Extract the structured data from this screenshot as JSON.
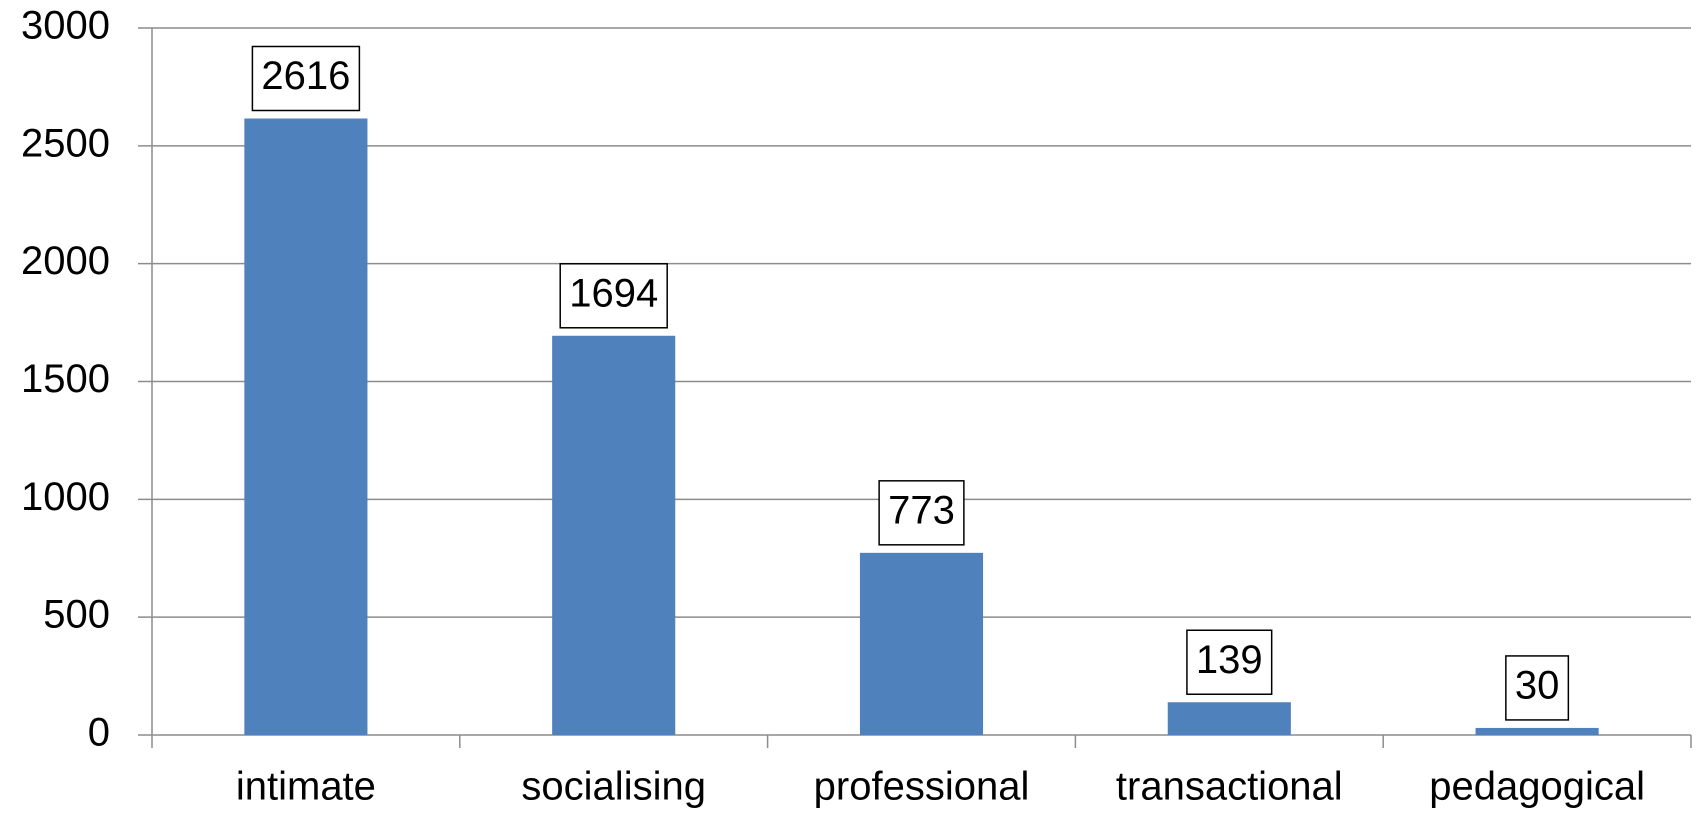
{
  "chart_data": {
    "type": "bar",
    "categories": [
      "intimate",
      "socialising",
      "professional",
      "transactional",
      "pedagogical"
    ],
    "values": [
      2616,
      1694,
      773,
      139,
      30
    ],
    "color": "#4f81bd",
    "ylim": [
      0,
      3000
    ],
    "yticks": [
      0,
      500,
      1000,
      1500,
      2000,
      2500,
      3000
    ],
    "grid": true,
    "data_labels": true
  }
}
